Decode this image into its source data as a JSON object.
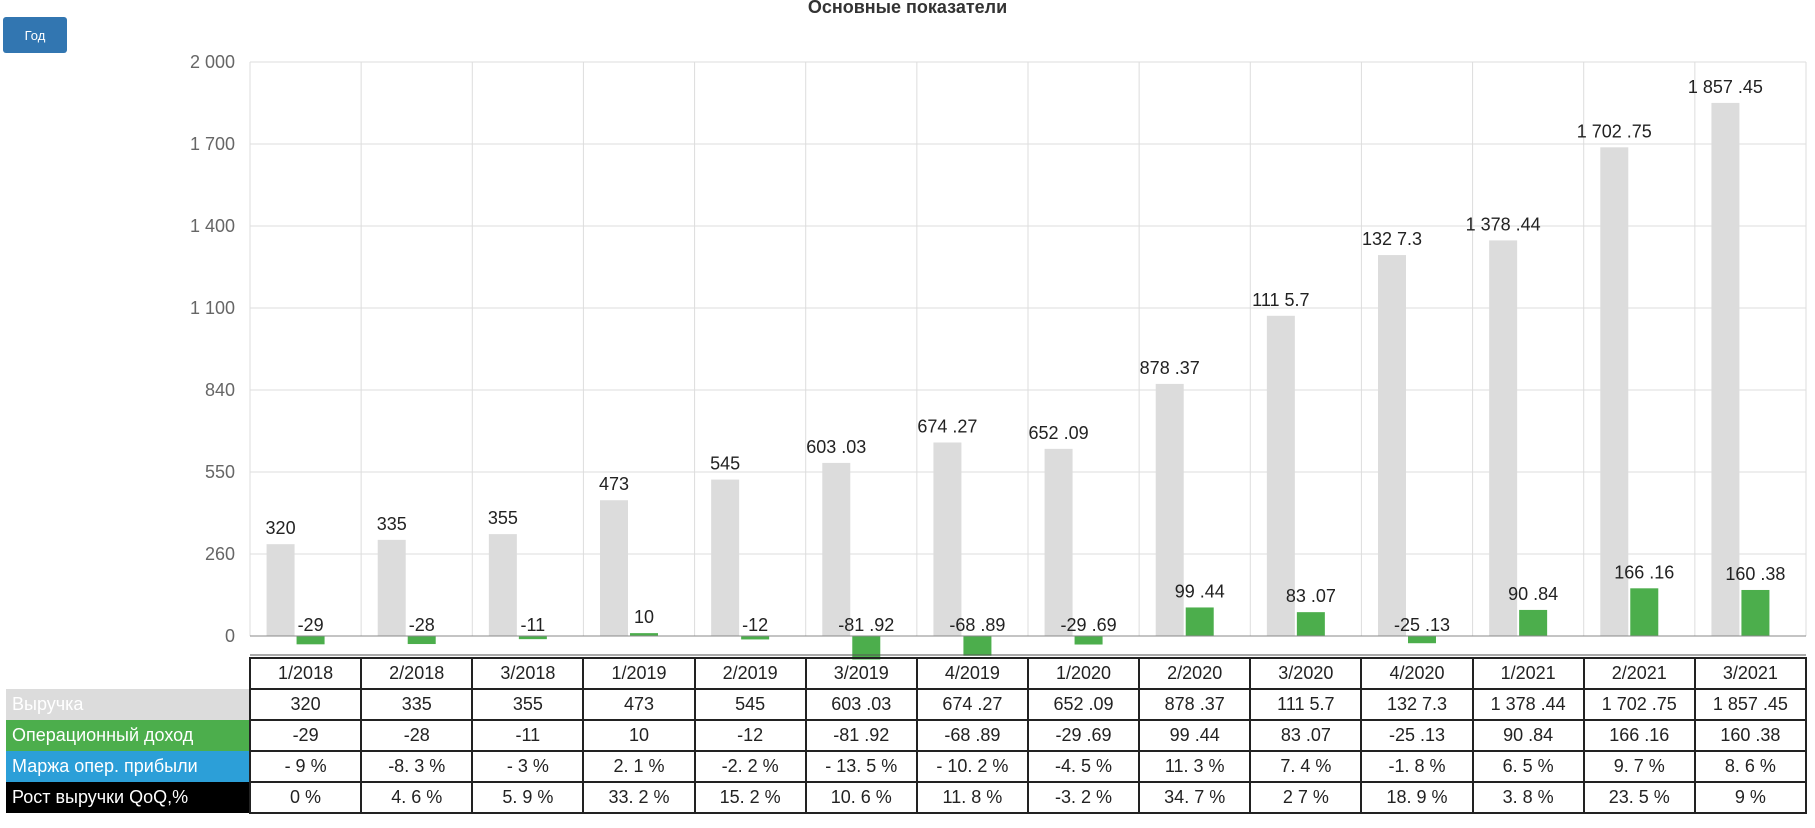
{
  "toolbar": {
    "period_label": "Год"
  },
  "chart_data": {
    "type": "bar",
    "title": "Основные показатели",
    "xlabel": "",
    "ylabel": "",
    "ylim": [
      0,
      2000
    ],
    "y_ticks": [
      "2 000",
      "1 700",
      "1 400",
      "1 100",
      "840",
      "550",
      "260",
      "0"
    ],
    "categories": [
      "1/2018",
      "2/2018",
      "3/2018",
      "1/2019",
      "2/2019",
      "3/2019",
      "4/2019",
      "1/2020",
      "2/2020",
      "3/2020",
      "4/2020",
      "1/2021",
      "2/2021",
      "3/2021"
    ],
    "grid": true,
    "series": [
      {
        "name": "Выручка",
        "color": "#dcdcdc",
        "values": [
          320,
          335,
          355,
          473,
          545,
          603.03,
          674.27,
          652.09,
          878.37,
          1115.7,
          1327.3,
          1378.44,
          1702.75,
          1857.45
        ],
        "labels": [
          "320",
          "335",
          "355",
          "473",
          "545",
          "603 .03",
          "674 .27",
          "652 .09",
          "878 .37",
          "111 5.7",
          "132 7.3",
          "1 378 .44",
          "1 702 .75",
          "1 857 .45"
        ]
      },
      {
        "name": "Операционный доход",
        "color": "#4cae4c",
        "values": [
          -29,
          -28,
          -11,
          10,
          -12,
          -81.92,
          -68.89,
          -29.69,
          99.44,
          83.07,
          -25.13,
          90.84,
          166.16,
          160.38
        ],
        "labels": [
          "-29",
          "-28",
          "-11",
          "10",
          "-12",
          "-81 .92",
          "-68 .89",
          "-29 .69",
          "99 .44",
          "83 .07",
          "-25 .13",
          "90 .84",
          "166 .16",
          "160 .38"
        ]
      }
    ],
    "table": {
      "rows": [
        {
          "name": "Выручка",
          "bg": "#dcdcdc",
          "fg": "#ffffff",
          "cells": [
            "320",
            "335",
            "355",
            "473",
            "545",
            "603 .03",
            "674 .27",
            "652 .09",
            "878 .37",
            "111 5.7",
            "132 7.3",
            "1 378 .44",
            "1 702 .75",
            "1 857 .45"
          ]
        },
        {
          "name": "Операционный доход",
          "bg": "#4cae4c",
          "fg": "#ffffff",
          "cells": [
            "-29",
            "-28",
            "-11",
            "10",
            "-12",
            "-81 .92",
            "-68 .89",
            "-29 .69",
            "99 .44",
            "83 .07",
            "-25 .13",
            "90 .84",
            "166 .16",
            "160 .38"
          ]
        },
        {
          "name": "Маржа опер. прибыли",
          "bg": "#2c9fd8",
          "fg": "#ffffff",
          "cells": [
            "- 9 %",
            "-8. 3 %",
            "- 3 %",
            "2. 1 %",
            "-2. 2 %",
            "- 13. 5 %",
            "- 10. 2 %",
            "-4. 5 %",
            "11. 3 %",
            "7. 4 %",
            "-1. 8 %",
            "6. 5 %",
            "9. 7 %",
            "8. 6 %"
          ]
        },
        {
          "name": "Рост выручки QoQ,%",
          "bg": "#000000",
          "fg": "#ffffff",
          "cells": [
            "0 %",
            "4. 6 %",
            "5. 9 %",
            "33. 2 %",
            "15. 2 %",
            "10. 6 %",
            "11. 8 %",
            "-3. 2 %",
            "34. 7 %",
            "2 7 %",
            "18. 9 %",
            "3. 8 %",
            "23. 5 %",
            "9 %"
          ]
        }
      ]
    }
  }
}
